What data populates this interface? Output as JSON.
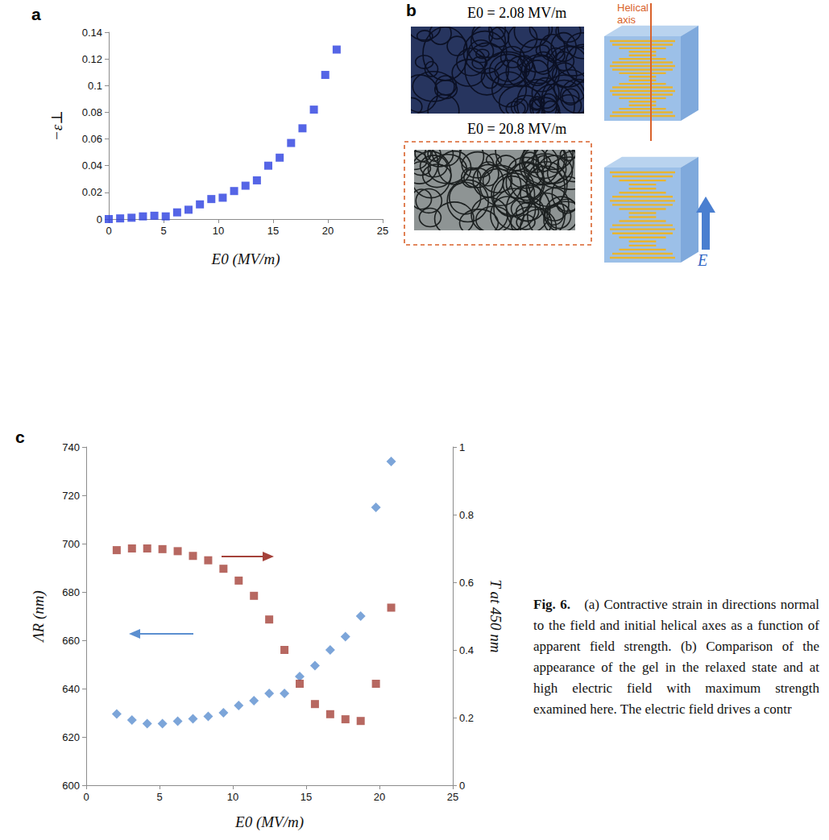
{
  "chart_data": [
    {
      "type": "scatter",
      "title": "a",
      "xlabel": "E0 (MV/m)",
      "ylabel": "−ε⊥",
      "x": [
        0,
        1.04,
        2.08,
        3.12,
        4.16,
        5.2,
        6.24,
        7.28,
        8.32,
        9.36,
        10.4,
        11.44,
        12.48,
        13.52,
        14.56,
        15.6,
        16.64,
        17.68,
        18.72,
        19.76,
        20.8
      ],
      "values": [
        0,
        0.0005,
        0.001,
        0.002,
        0.0025,
        0.002,
        0.005,
        0.007,
        0.011,
        0.015,
        0.016,
        0.021,
        0.025,
        0.029,
        0.04,
        0.046,
        0.057,
        0.068,
        0.082,
        0.108,
        0.127
      ],
      "color": "#2b3fe0",
      "marker": "square",
      "xlim": [
        0,
        25
      ],
      "xticks": [
        0,
        5,
        10,
        15,
        20,
        25
      ],
      "ylim": [
        0,
        0.14
      ],
      "yticks": [
        0,
        0.02,
        0.04,
        0.06,
        0.08,
        0.1,
        0.12,
        0.14
      ],
      "grid": false
    },
    {
      "type": "scatter",
      "title": "c",
      "xlabel": "E0 (MV/m)",
      "ylabel": "ΛR (nm)",
      "y2label": "T at 450 nm",
      "x": [
        2.08,
        3.12,
        4.16,
        5.2,
        6.24,
        7.28,
        8.32,
        9.36,
        10.4,
        11.44,
        12.48,
        13.52,
        14.56,
        15.6,
        16.64,
        17.68,
        18.72,
        19.76,
        20.8
      ],
      "series": [
        {
          "color": "#5b8fd0",
          "marker": "diamond",
          "values": [
            629.5,
            627,
            625.5,
            625.5,
            626.5,
            627.5,
            628.5,
            630,
            633,
            635,
            638,
            638,
            645,
            649.5,
            656,
            661.5,
            670,
            715,
            734
          ]
        },
        {
          "color": "#a5423a",
          "marker": "square",
          "axis": "y2",
          "values": [
            0.695,
            0.7,
            0.7,
            0.698,
            0.692,
            0.678,
            0.665,
            0.64,
            0.605,
            0.56,
            0.49,
            0.4,
            0.3,
            0.24,
            0.21,
            0.195,
            0.19,
            0.3,
            0.525
          ]
        }
      ],
      "xlim": [
        0,
        25
      ],
      "xticks": [
        0,
        5,
        10,
        15,
        20,
        25
      ],
      "ylim": [
        600,
        740
      ],
      "yticks": [
        600,
        620,
        640,
        660,
        680,
        700,
        720,
        740
      ],
      "y2lim": [
        0,
        1
      ],
      "y2ticks": [
        0,
        0.2,
        0.4,
        0.6,
        0.8,
        1
      ],
      "grid": false
    }
  ],
  "panel_b": {
    "label": "b",
    "photos": [
      {
        "caption": "E0 = 2.08 MV/m"
      },
      {
        "caption": "E0 = 20.8 MV/m"
      }
    ],
    "diagram": {
      "axis_label": "Helical axis",
      "field_label": "E"
    }
  },
  "caption": {
    "label": "Fig. 6.",
    "text": "(a) Contractive strain in directions normal to the field and initial helical axes as a function of apparent field strength. (b) Comparison of the appearance of the gel in the relaxed state and at high electric field with maximum strength examined here. The electric field drives a contr"
  }
}
